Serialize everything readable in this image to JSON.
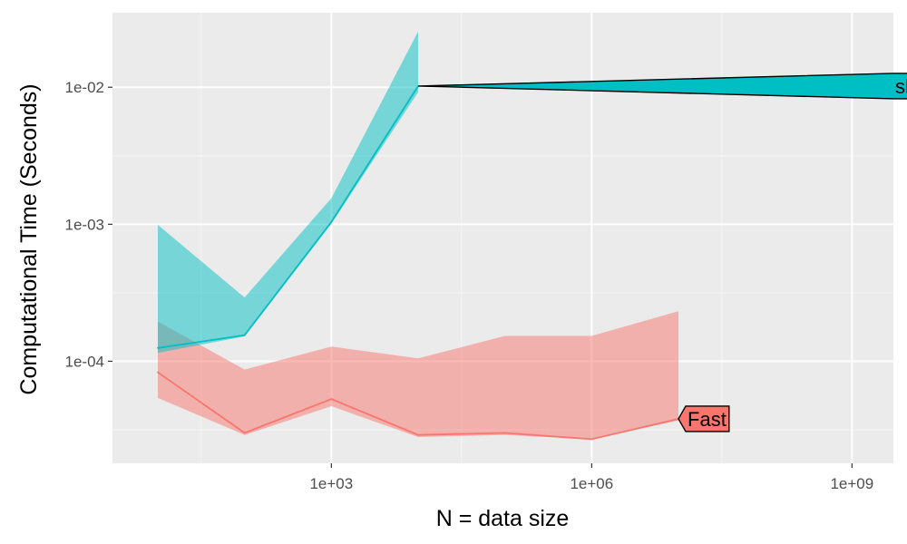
{
  "chart_data": {
    "type": "line",
    "xlabel": "N = data size",
    "ylabel": "Computational Time (Seconds)",
    "x_scale": "log10",
    "y_scale": "log10",
    "xlim": [
      3,
      3000000000
    ],
    "ylim": [
      1.8e-05,
      0.035
    ],
    "x_ticks": [
      {
        "value": 1000,
        "label": "1e+03"
      },
      {
        "value": 1000000,
        "label": "1e+06"
      },
      {
        "value": 1000000000,
        "label": "1e+09"
      }
    ],
    "y_ticks": [
      {
        "value": 0.0001,
        "label": "1e-04"
      },
      {
        "value": 0.001,
        "label": "1e-03"
      },
      {
        "value": 0.01,
        "label": "1e-02"
      }
    ],
    "x_minor": [
      31.6,
      31623,
      31622777
    ],
    "y_minor": [
      3.16e-05,
      0.000316,
      0.00316
    ],
    "grid": true,
    "legend": "none",
    "series": [
      {
        "name": "Fast",
        "color": "#f8766d",
        "x": [
          10,
          100,
          1000,
          10000,
          100000,
          1000000,
          10000000
        ],
        "values": [
          8.3e-05,
          3e-05,
          5.3e-05,
          2.9e-05,
          3e-05,
          2.7e-05,
          3.8e-05
        ],
        "lower": [
          5.4e-05,
          2.9e-05,
          4.7e-05,
          2.8e-05,
          2.9e-05,
          2.7e-05,
          3.7e-05
        ],
        "upper": [
          0.000195,
          8.7e-05,
          0.000128,
          0.000105,
          0.000153,
          0.000153,
          0.000232
        ]
      },
      {
        "name": "slow",
        "color": "#00bfc4",
        "x": [
          10,
          100,
          1000,
          10000
        ],
        "values": [
          0.000125,
          0.000155,
          0.00104,
          0.0102
        ],
        "lower": [
          0.000115,
          0.000152,
          0.00101,
          0.0092
        ],
        "upper": [
          0.00099,
          0.000292,
          0.00155,
          0.0255
        ]
      }
    ],
    "direct_labels": [
      {
        "series": "slow",
        "text": "slow",
        "x": 10000000000,
        "y": 0.0102,
        "from_x": 10000,
        "shape": "polygon"
      },
      {
        "series": "Fast",
        "text": "Fast",
        "x": 10000000,
        "y": 3.8e-05,
        "shape": "arrow-tag"
      }
    ]
  }
}
